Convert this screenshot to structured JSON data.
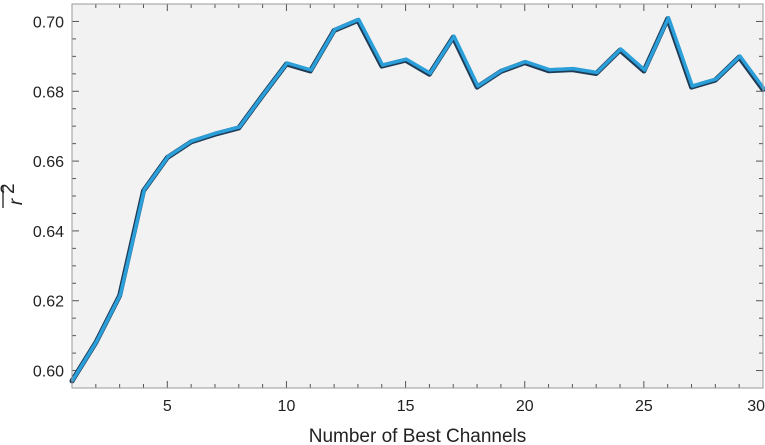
{
  "chart_data": {
    "type": "line",
    "xlabel": "Number of Best Channels",
    "ylabel": "r",
    "ylabel_superscript": "2",
    "ylabel_overline": true,
    "xlim": [
      1,
      30
    ],
    "ylim": [
      0.595,
      0.705
    ],
    "xticks": [
      5,
      10,
      15,
      20,
      25,
      30
    ],
    "xtick_labels": [
      "5",
      "10",
      "15",
      "20",
      "25",
      "30"
    ],
    "yticks": [
      0.6,
      0.62,
      0.64,
      0.66,
      0.68,
      0.7
    ],
    "ytick_labels": [
      "0.60",
      "0.62",
      "0.64",
      "0.66",
      "0.68",
      "0.70"
    ],
    "grid": false,
    "colors": {
      "plot_background": "#f2f2f2",
      "frame": "#999999",
      "line_main": "#2b9fd9",
      "line_shadow": "#1f3b56"
    },
    "series": [
      {
        "x": [
          1,
          2,
          3,
          4,
          5,
          6,
          7,
          8,
          9,
          10,
          11,
          12,
          13,
          14,
          15,
          16,
          17,
          18,
          19,
          20,
          21,
          22,
          23,
          24,
          25,
          26,
          27,
          28,
          29,
          30
        ],
        "values": [
          0.597,
          0.608,
          0.6215,
          0.6515,
          0.661,
          0.6655,
          0.6677,
          0.6695,
          0.6788,
          0.6878,
          0.6858,
          0.6974,
          0.7003,
          0.6872,
          0.6889,
          0.6849,
          0.6955,
          0.6812,
          0.6857,
          0.6882,
          0.6859,
          0.6862,
          0.6851,
          0.6918,
          0.6858,
          0.7008,
          0.6812,
          0.6832,
          0.6898,
          0.6805
        ]
      }
    ]
  }
}
